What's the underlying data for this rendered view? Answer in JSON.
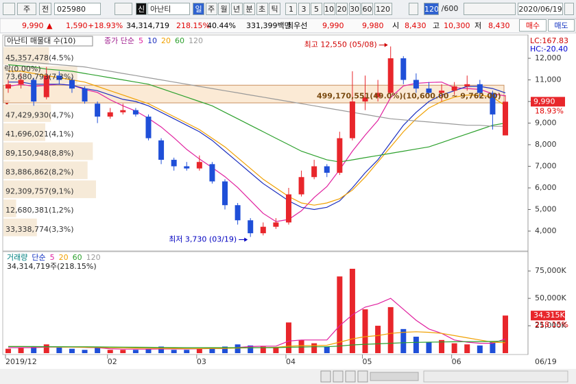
{
  "toolbar": {
    "period": "주",
    "mode": "전",
    "code": "025980",
    "badge": "신",
    "name": "아난티",
    "units": [
      "일",
      "주",
      "월",
      "년",
      "분",
      "초",
      "틱"
    ],
    "ticks": [
      "1",
      "3",
      "5",
      "10",
      "20",
      "30",
      "60",
      "120"
    ],
    "count": "120",
    "max": "/600",
    "date": "2020/06/19"
  },
  "info": {
    "price": "9,990",
    "arrow": "▲",
    "change": "1,590",
    "rate": "+18.93%",
    "volume": "34,314,719",
    "volume_ratio": "218.15%",
    "turnover": "40.44%",
    "amount": "331,399백만",
    "best_label": "최우선",
    "ask": "9,990",
    "bid": "9,980",
    "open_label": "시",
    "open": "8,430",
    "high_label": "고",
    "high": "10,300",
    "low_label": "저",
    "low": "8,430",
    "buy": "매수",
    "sell": "매도"
  },
  "chart_data": [
    {
      "type": "candlestick",
      "title": "아난티 매물대 수(10)",
      "legend_title": "종가 단순",
      "lock_label": "락(0.00%)",
      "categories": [
        "2019/12",
        null,
        null,
        null,
        null,
        null,
        null,
        null,
        "02",
        null,
        null,
        null,
        null,
        null,
        null,
        "03",
        null,
        null,
        null,
        null,
        null,
        null,
        "04",
        null,
        null,
        null,
        null,
        null,
        "05",
        null,
        null,
        null,
        null,
        null,
        null,
        "06",
        null,
        null,
        null,
        null
      ],
      "x_end_label": "06/19",
      "open": [
        10600,
        10800,
        11000,
        10200,
        11200,
        11000,
        10600,
        9900,
        9300,
        9500,
        9600,
        9300,
        8200,
        7300,
        7000,
        6900,
        7100,
        6300,
        5200,
        4500,
        3900,
        4200,
        4400,
        5700,
        6500,
        7000,
        6700,
        8300,
        10000,
        10200,
        10400,
        12000,
        11000,
        10600,
        10400,
        10500,
        10700,
        10800,
        10400,
        8430
      ],
      "high": [
        11000,
        11300,
        11100,
        11600,
        11400,
        11100,
        10700,
        10000,
        9700,
        9900,
        9700,
        9400,
        8300,
        7400,
        7200,
        7500,
        7200,
        6400,
        5300,
        4600,
        4400,
        4600,
        6000,
        6800,
        7300,
        7100,
        8600,
        11400,
        11200,
        11000,
        12550,
        12100,
        11300,
        10900,
        10800,
        10900,
        11200,
        11000,
        10500,
        10300
      ],
      "low": [
        10400,
        10600,
        9800,
        10100,
        10800,
        10400,
        9900,
        9000,
        9200,
        9400,
        9300,
        8200,
        7100,
        6800,
        6800,
        6800,
        6200,
        5000,
        4300,
        3730,
        3800,
        4100,
        4300,
        5600,
        6400,
        6500,
        6600,
        8200,
        9600,
        10000,
        10300,
        10800,
        10400,
        10200,
        10000,
        10300,
        10500,
        10200,
        8700,
        8430
      ],
      "close": [
        10800,
        11000,
        10000,
        11200,
        11000,
        10600,
        10000,
        9300,
        9500,
        9600,
        9400,
        8300,
        7300,
        7000,
        6900,
        7200,
        6300,
        5200,
        4500,
        3900,
        4200,
        4400,
        5700,
        6500,
        7000,
        6700,
        8300,
        10000,
        10200,
        10400,
        12000,
        11000,
        10600,
        10400,
        10500,
        10700,
        10800,
        10400,
        9400,
        9990
      ],
      "up_color": "#e8262b",
      "down_color": "#1f4fd8",
      "ylim": [
        3111,
        13048
      ],
      "yticks": [
        {
          "value": 4000,
          "label": "4,000"
        },
        {
          "value": 5000,
          "label": "5,000"
        },
        {
          "value": 6000,
          "label": "6,000"
        },
        {
          "value": 7000,
          "label": "7,000"
        },
        {
          "value": 8000,
          "label": "8,000"
        },
        {
          "value": 9000,
          "label": "9,000"
        },
        {
          "value": 10000,
          "label": "10,000"
        },
        {
          "value": 11000,
          "label": "11,000"
        },
        {
          "value": 12000,
          "label": "12,000"
        }
      ],
      "grid": false,
      "series": [
        {
          "name": "5",
          "color": "#e0209f",
          "values": [
            10700,
            10800,
            10700,
            10750,
            10800,
            10760,
            10560,
            10420,
            10080,
            9800,
            9560,
            9220,
            8820,
            8320,
            7780,
            7340,
            6940,
            6520,
            6020,
            5420,
            4820,
            4440,
            4540,
            4940,
            5560,
            6060,
            6840,
            7700,
            8440,
            9120,
            10180,
            10720,
            10840,
            10880,
            10900,
            10640,
            10600,
            10560,
            10360,
            10258
          ]
        },
        {
          "name": "10",
          "color": "#1c2fbf",
          "values": [
            10900,
            10900,
            10800,
            10800,
            10800,
            10750,
            10600,
            10500,
            10300,
            10100,
            10000,
            9800,
            9500,
            9200,
            8900,
            8600,
            8200,
            7700,
            7200,
            6700,
            6200,
            5800,
            5400,
            5100,
            5000,
            5100,
            5400,
            6000,
            6700,
            7300,
            8100,
            8900,
            9500,
            10000,
            10300,
            10500,
            10700,
            10700,
            10600,
            10400
          ]
        },
        {
          "name": "20",
          "color": "#f0a000",
          "values": [
            11400,
            11400,
            11300,
            11200,
            11100,
            11000,
            10900,
            10700,
            10500,
            10300,
            10100,
            9900,
            9600,
            9300,
            9000,
            8700,
            8300,
            7900,
            7400,
            6900,
            6400,
            6000,
            5600,
            5300,
            5200,
            5300,
            5500,
            5900,
            6500,
            7200,
            7900,
            8600,
            9200,
            9700,
            10000,
            10200,
            10300,
            10300,
            10200,
            9800
          ]
        },
        {
          "name": "60",
          "color": "#2ca02c",
          "values": [
            11700,
            11650,
            11600,
            11500,
            11450,
            11400,
            11300,
            11200,
            11100,
            11000,
            10900,
            10800,
            10600,
            10400,
            10200,
            10000,
            9800,
            9500,
            9200,
            8900,
            8600,
            8300,
            8000,
            7700,
            7500,
            7300,
            7200,
            7300,
            7400,
            7500,
            7600,
            7700,
            7800,
            7900,
            8100,
            8300,
            8500,
            8700,
            8900,
            9000
          ]
        },
        {
          "name": "120",
          "color": "#999999",
          "values": [
            11900,
            11850,
            11800,
            11750,
            11700,
            11650,
            11600,
            11500,
            11400,
            11300,
            11200,
            11100,
            11000,
            10900,
            10800,
            10700,
            10600,
            10500,
            10400,
            10300,
            10200,
            10100,
            10000,
            9900,
            9800,
            9700,
            9600,
            9500,
            9400,
            9300,
            9200,
            9150,
            9100,
            9050,
            9000,
            8950,
            8900,
            8900,
            8850,
            8850
          ]
        }
      ],
      "profile": [
        {
          "label": "45,357,478(4.5%)",
          "value": 45357478
        },
        {
          "label": "73,680,793(7.3%)",
          "value": 73680793
        },
        {
          "label": "499,170,551(49.0%)(10,600.00 ~ 9,762.00)",
          "value": 499170551
        },
        {
          "label": "47,429,930(4,7%)",
          "value": 47429930
        },
        {
          "label": "41,696,021(4,1%)",
          "value": 41696021
        },
        {
          "label": "89,150,948(8,8%)",
          "value": 89150948
        },
        {
          "label": "83,886,862(8,2%)",
          "value": 83886862
        },
        {
          "label": "92,309,757(9,1%)",
          "value": 92309757
        },
        {
          "label": "12,680,381(1,2%)",
          "value": 12680381
        },
        {
          "label": "33,338,774(3,3%)",
          "value": 33338774
        }
      ],
      "annotations": [
        {
          "text": "최고 12,550 (05/08)",
          "value": 12550,
          "color": "#d00000"
        },
        {
          "text": "최저 3,730 (03/19)",
          "value": 3730,
          "color": "#0000c0"
        }
      ],
      "indicators": [
        {
          "text": "LC:167.83",
          "color": "#d00000"
        },
        {
          "text": "HC:-20.40",
          "color": "#0000d0"
        }
      ],
      "last_label": "9,990",
      "last_change": "18.93%"
    },
    {
      "type": "bar",
      "title": "거래량",
      "legend_title": "단순",
      "subtitle": "34,314,719주(218.15%)",
      "values": [
        4000,
        5000,
        6000,
        8000,
        5000,
        4000,
        3000,
        5000,
        3000,
        3000,
        3000,
        4000,
        6000,
        3000,
        3000,
        4000,
        5000,
        6000,
        8000,
        7000,
        6000,
        5000,
        28000,
        12000,
        9000,
        6000,
        70000,
        77000,
        40000,
        25000,
        42000,
        22000,
        15000,
        10000,
        12000,
        9000,
        8000,
        7000,
        10000,
        34315
      ],
      "ylim": [
        0,
        92000
      ],
      "yticks": [
        {
          "value": 25000,
          "label": "25,000K"
        },
        {
          "value": 50000,
          "label": "50,000K"
        },
        {
          "value": 75000,
          "label": "75,000K"
        }
      ],
      "series": [
        {
          "name": "5",
          "color": "#e0209f",
          "values": [
            5000,
            5000,
            5000,
            5500,
            5600,
            5600,
            5200,
            5000,
            4000,
            3600,
            3600,
            3600,
            3800,
            3800,
            3800,
            4000,
            4200,
            4200,
            5200,
            6000,
            6400,
            6400,
            11000,
            12000,
            12000,
            12000,
            25000,
            35000,
            42000,
            45000,
            50000,
            40000,
            30000,
            22000,
            18000,
            12000,
            10000,
            9000,
            9000,
            13000
          ]
        },
        {
          "name": "20",
          "color": "#f0a000",
          "values": [
            6000,
            6000,
            5800,
            5800,
            5600,
            5500,
            5400,
            5200,
            5000,
            4800,
            4600,
            4500,
            4400,
            4300,
            4200,
            4200,
            4300,
            4400,
            4600,
            4900,
            5100,
            5300,
            6400,
            6800,
            7000,
            7200,
            10000,
            13000,
            15000,
            16000,
            18000,
            19000,
            19500,
            19000,
            18000,
            16000,
            14000,
            12000,
            10000,
            9500
          ]
        },
        {
          "name": "60",
          "color": "#2ca02c",
          "values": [
            6000,
            6000,
            6000,
            5900,
            5900,
            5800,
            5800,
            5700,
            5600,
            5500,
            5400,
            5300,
            5200,
            5100,
            5000,
            5000,
            5000,
            5000,
            5000,
            5000,
            5000,
            5000,
            5400,
            5600,
            5800,
            5800,
            6500,
            7500,
            8100,
            8500,
            9000,
            9500,
            9800,
            10000,
            10200,
            10400,
            10500,
            10600,
            10700,
            11000
          ]
        },
        {
          "name": "120",
          "color": "#999999"
        }
      ],
      "last_label": "34,315K",
      "last_change": "218.15%"
    }
  ]
}
